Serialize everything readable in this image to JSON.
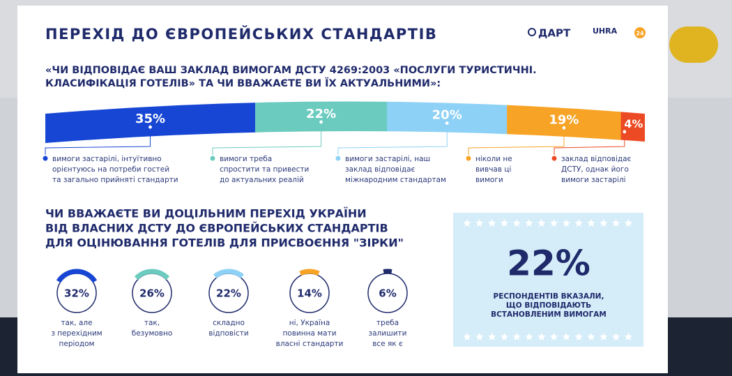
{
  "header": {
    "title": "ПЕРЕХІД ДО ЄВРОПЕЙСЬКИХ СТАНДАРТІВ",
    "logos": [
      "ДАРТ",
      "UHRA",
      "24"
    ]
  },
  "question1": [
    "«ЧИ ВІДПОВІДАЄ ВАШ ЗАКЛАД ВИМОГАМ ДСТУ 4269:2003 «ПОСЛУГИ ТУРИСТИЧНІ.",
    "КЛАСИФІКАЦІЯ ГОТЕЛІВ» ТА ЧИ ВВАЖАЄТЕ ВИ ЇХ АКТУАЛЬНИМИ»:"
  ],
  "segments": [
    {
      "value": 35,
      "label": "35%",
      "color": "#1746d4",
      "legend": [
        "вимоги застарілі, інтуїтивно",
        "орієнтуюсь на потреби гостей",
        "та загально прийняті стандарти"
      ]
    },
    {
      "value": 22,
      "label": "22%",
      "color": "#6ccbbf",
      "legend": [
        "вимоги треба",
        "спростити та привести",
        "до актуальних реалій"
      ]
    },
    {
      "value": 20,
      "label": "20%",
      "color": "#8ed1f6",
      "legend": [
        "вимоги застарілі, наш",
        "заклад відповідає",
        "міжнародним стандартам"
      ]
    },
    {
      "value": 19,
      "label": "19%",
      "color": "#f7a325",
      "legend": [
        "ніколи не",
        "вивчав ці",
        "вимоги"
      ]
    },
    {
      "value": 4,
      "label": "4%",
      "color": "#ec4a24",
      "legend": [
        "заклад відповідає",
        "ДСТУ, однак його",
        "вимоги застарілі"
      ]
    }
  ],
  "question2": [
    "ЧИ ВВАЖАЄТЕ ВИ ДОЦІЛЬНИМ ПЕРЕХІД УКРАЇНИ",
    "ВІД ВЛАСНИХ ДСТУ ДО ЄВРОПЕЙСЬКИХ СТАНДАРТІВ",
    "ДЛЯ ОЦІНЮВАННЯ ГОТЕЛІВ ДЛЯ ПРИСВОЄННЯ \"ЗІРКИ\""
  ],
  "rings": [
    {
      "value": 32,
      "label": "32%",
      "color": "#1746d4",
      "caption": [
        "так, але",
        "з перехідним",
        "періодом"
      ]
    },
    {
      "value": 26,
      "label": "26%",
      "color": "#6ccbbf",
      "caption": [
        "так,",
        "безумовно"
      ]
    },
    {
      "value": 22,
      "label": "22%",
      "color": "#8ed1f6",
      "caption": [
        "складно",
        "відповісти"
      ]
    },
    {
      "value": 14,
      "label": "14%",
      "color": "#f7a325",
      "caption": [
        "ні, Україна",
        "повинна мати",
        "власні стандарти"
      ]
    },
    {
      "value": 6,
      "label": "6%",
      "color": "#1f2a6b",
      "caption": [
        "треба",
        "залишити",
        "все як є"
      ]
    }
  ],
  "highlight": {
    "label": "22%",
    "lines": [
      "РЕСПОНДЕНТІВ ВКАЗАЛИ,",
      "ЩО ВІДПОВІДАЮТЬ",
      "ВСТАНОВЛЕНИМ ВИМОГАМ"
    ]
  }
}
